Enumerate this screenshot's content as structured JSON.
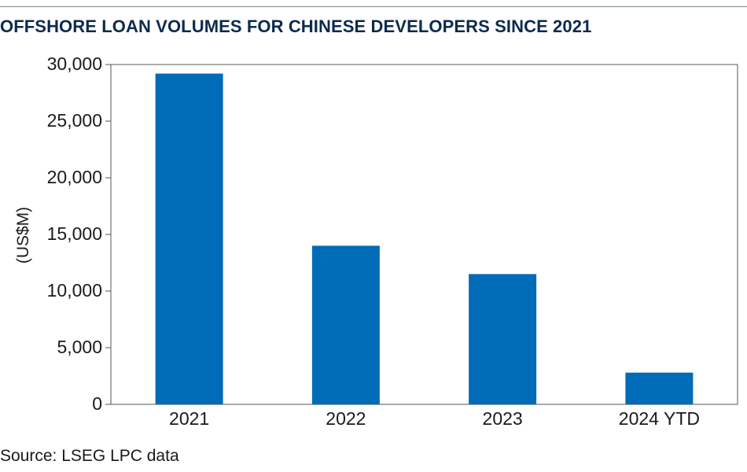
{
  "chart_data": {
    "type": "bar",
    "title": "OFFSHORE LOAN VOLUMES FOR CHINESE DEVELOPERS SINCE 2021",
    "xlabel": "",
    "ylabel": "(US$M)",
    "categories": [
      "2021",
      "2022",
      "2023",
      "2024 YTD"
    ],
    "values": [
      29200,
      14000,
      11500,
      2800
    ],
    "ylim": [
      0,
      30000
    ],
    "yticks": [
      0,
      5000,
      10000,
      15000,
      20000,
      25000,
      30000
    ],
    "ytick_labels": [
      "0",
      "5,000",
      "10,000",
      "15,000",
      "20,000",
      "25,000",
      "30,000"
    ],
    "grid": false,
    "bar_color": "#006bb6",
    "source": "Source: LSEG LPC data"
  }
}
